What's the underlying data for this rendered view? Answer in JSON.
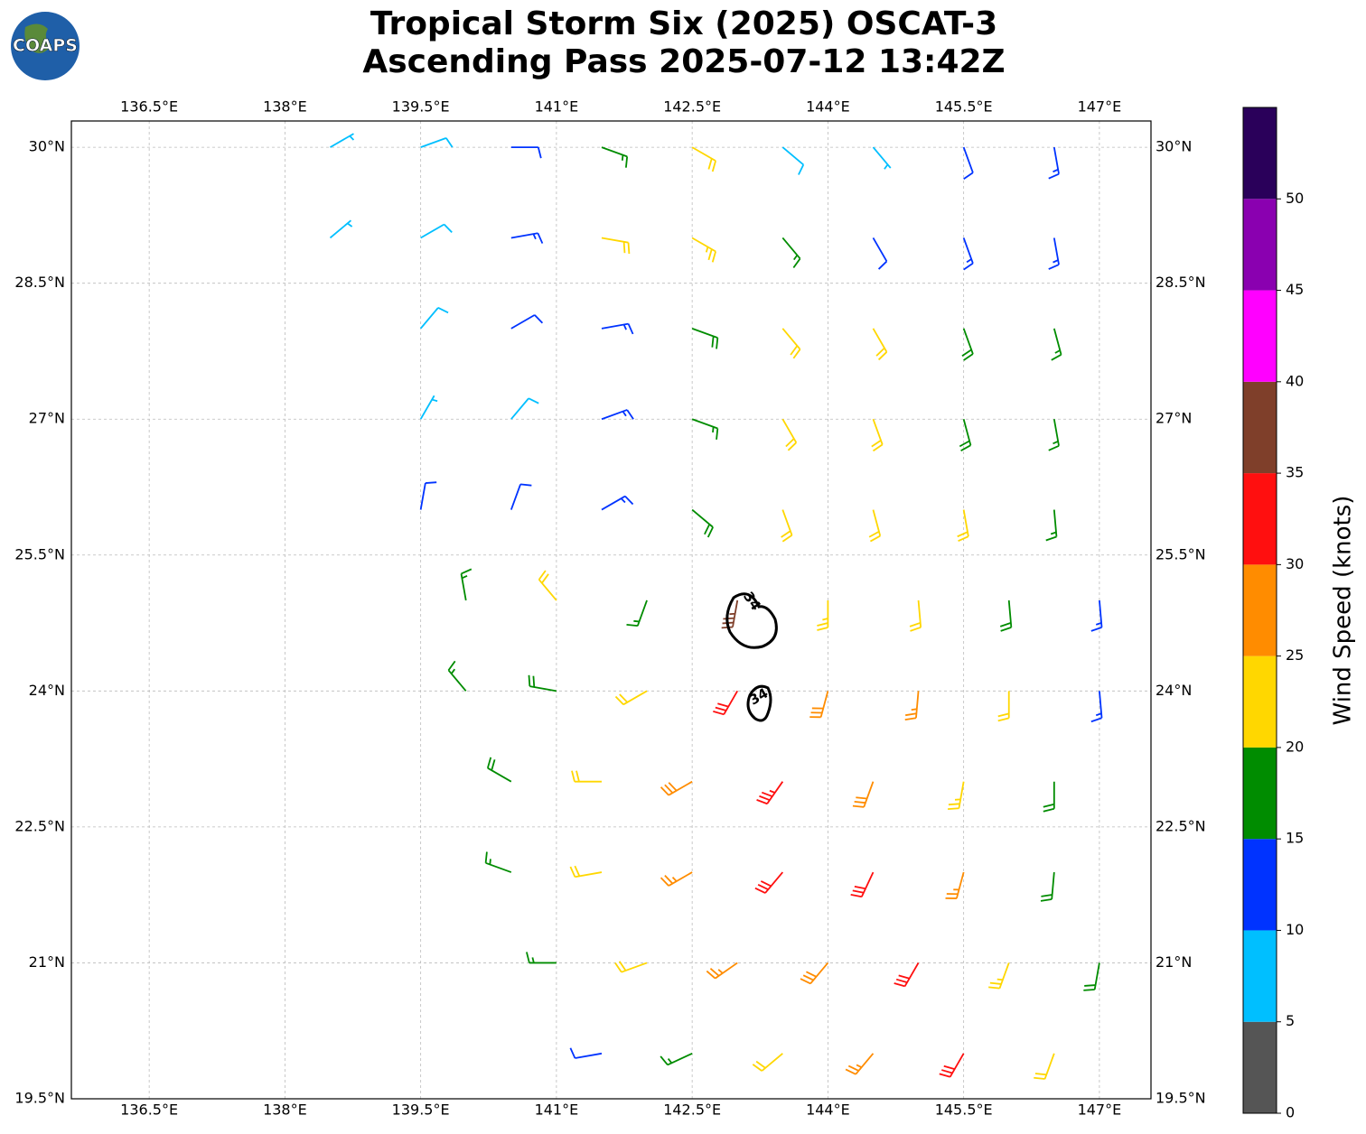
{
  "header": {
    "logo_text": "COAPS",
    "title": "Tropical Storm Six (2025) OSCAT-3",
    "subtitle": "Ascending Pass 2025-07-12 13:42Z"
  },
  "map": {
    "type": "wind_barbs",
    "xlim": [
      135.64,
      147.57
    ],
    "ylim": [
      19.5,
      30.29
    ],
    "xticks": [
      {
        "value": 136.5,
        "label": "136.5°E"
      },
      {
        "value": 138,
        "label": "138°E"
      },
      {
        "value": 139.5,
        "label": "139.5°E"
      },
      {
        "value": 141,
        "label": "141°E"
      },
      {
        "value": 142.5,
        "label": "142.5°E"
      },
      {
        "value": 144,
        "label": "144°E"
      },
      {
        "value": 145.5,
        "label": "145.5°E"
      },
      {
        "value": 147,
        "label": "147°E"
      }
    ],
    "yticks": [
      {
        "value": 19.5,
        "label": "19.5°N"
      },
      {
        "value": 21,
        "label": "21°N"
      },
      {
        "value": 22.5,
        "label": "22.5°N"
      },
      {
        "value": 24,
        "label": "24°N"
      },
      {
        "value": 25.5,
        "label": "25.5°N"
      },
      {
        "value": 27,
        "label": "27°N"
      },
      {
        "value": 28.5,
        "label": "28.5°N"
      },
      {
        "value": 30,
        "label": "30°N"
      }
    ],
    "grid": true,
    "barbs": [
      {
        "lat": 30,
        "lons": [
          138.5,
          139.5,
          140.5,
          141.5,
          142.5,
          143.5,
          144.5,
          145.5,
          146.5
        ],
        "speeds": [
          7,
          8,
          12,
          17,
          22,
          8,
          7,
          12,
          13
        ],
        "directions": [
          60,
          70,
          90,
          110,
          120,
          130,
          140,
          160,
          170
        ]
      },
      {
        "lat": 29,
        "lons": [
          138.5,
          139.5,
          140.5,
          141.5,
          142.5,
          143.5,
          144.5,
          145.5,
          146.5
        ],
        "speeds": [
          7,
          9,
          13,
          22,
          24,
          17,
          12,
          13,
          14
        ],
        "directions": [
          50,
          60,
          80,
          100,
          120,
          140,
          150,
          160,
          170
        ]
      },
      {
        "lat": 28,
        "lons": [
          139.5,
          140.5,
          141.5,
          142.5,
          143.5,
          144.5,
          145.5,
          146.5
        ],
        "speeds": [
          8,
          10,
          14,
          18,
          22,
          20,
          18,
          17
        ],
        "directions": [
          40,
          60,
          80,
          110,
          140,
          150,
          160,
          165
        ]
      },
      {
        "lat": 27,
        "lons": [
          139.5,
          140.5,
          141.5,
          142.5,
          143.5,
          144.5,
          145.5,
          146.5
        ],
        "speeds": [
          7,
          9,
          13,
          17,
          22,
          22,
          18,
          17
        ],
        "directions": [
          30,
          40,
          70,
          110,
          150,
          160,
          165,
          170
        ]
      },
      {
        "lat": 26,
        "lons": [
          139.5,
          140.5,
          141.5,
          142.5,
          143.5,
          144.5,
          145.5,
          146.5
        ],
        "speeds": [
          12,
          12,
          13,
          18,
          22,
          22,
          20,
          17
        ],
        "directions": [
          10,
          20,
          60,
          130,
          160,
          165,
          170,
          175
        ]
      },
      {
        "lat": 25,
        "lons": [
          140,
          141,
          142,
          143,
          144,
          145,
          146,
          147
        ],
        "speeds": [
          17,
          22,
          15,
          35,
          24,
          22,
          18,
          13
        ],
        "directions": [
          350,
          320,
          200,
          190,
          180,
          175,
          175,
          175
        ]
      },
      {
        "lat": 24,
        "lons": [
          140,
          141,
          142,
          143,
          144,
          145,
          146,
          147
        ],
        "speeds": [
          17,
          18,
          22,
          32,
          28,
          25,
          20,
          13
        ],
        "directions": [
          320,
          280,
          240,
          210,
          195,
          185,
          180,
          175
        ]
      },
      {
        "lat": 23,
        "lons": [
          140.5,
          141.5,
          142.5,
          143.5,
          144.5,
          145.5,
          146.5
        ],
        "speeds": [
          18,
          22,
          28,
          33,
          28,
          24,
          18
        ],
        "directions": [
          300,
          270,
          240,
          215,
          200,
          190,
          180
        ]
      },
      {
        "lat": 22,
        "lons": [
          140.5,
          141.5,
          142.5,
          143.5,
          144.5,
          145.5,
          146.5
        ],
        "speeds": [
          17,
          22,
          25,
          30,
          32,
          26,
          18
        ],
        "directions": [
          290,
          260,
          240,
          220,
          205,
          195,
          185
        ]
      },
      {
        "lat": 21,
        "lons": [
          141,
          142,
          143,
          144,
          145,
          146,
          147
        ],
        "speeds": [
          17,
          22,
          25,
          28,
          30,
          23,
          18
        ],
        "directions": [
          270,
          250,
          235,
          220,
          210,
          200,
          190
        ]
      },
      {
        "lat": 20,
        "lons": [
          141.5,
          142.5,
          143.5,
          144.5,
          145.5,
          146.5
        ],
        "speeds": [
          12,
          17,
          22,
          26,
          30,
          20
        ],
        "directions": [
          260,
          245,
          230,
          220,
          210,
          200
        ]
      }
    ],
    "contour_labels": [
      "34",
      "34"
    ]
  },
  "colorbar": {
    "label": "Wind Speed (knots)",
    "bounds": [
      0,
      5,
      10,
      15,
      20,
      25,
      30,
      35,
      40,
      45,
      50,
      55
    ],
    "colors": [
      "#555555",
      "#00bfff",
      "#0033ff",
      "#008c00",
      "#ffd700",
      "#ff8c00",
      "#ff0f0f",
      "#7f3f2a",
      "#ff00ff",
      "#8a00b0",
      "#2a005a"
    ],
    "ticks": [
      0,
      5,
      10,
      15,
      20,
      25,
      30,
      35,
      40,
      45,
      50
    ]
  }
}
